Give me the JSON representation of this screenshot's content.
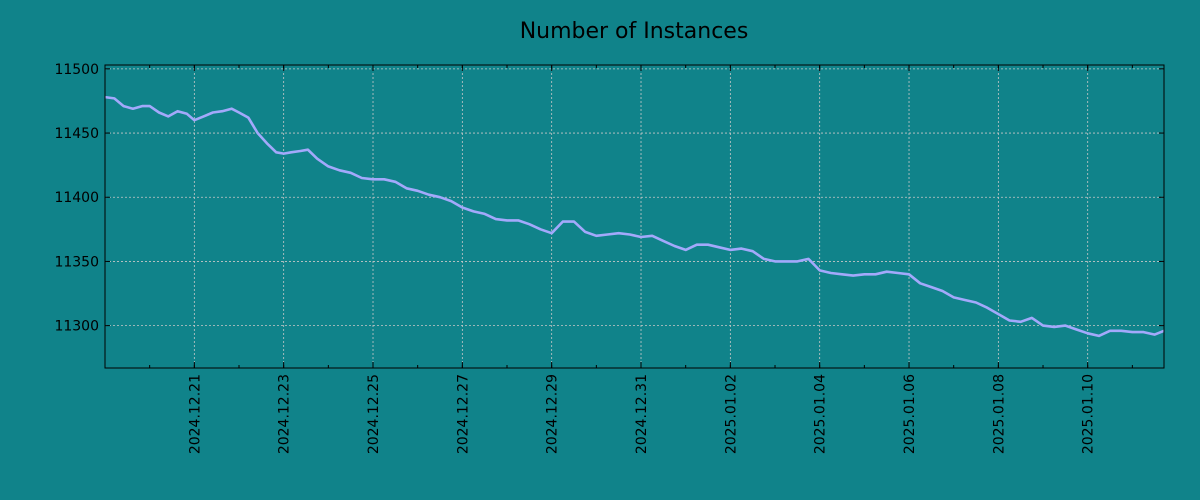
{
  "page": {
    "background": "#10838a"
  },
  "chart_data": {
    "type": "line",
    "title": "Number of Instances",
    "xlabel": "",
    "ylabel": "",
    "x_range": [
      "2024.12.19 00:00",
      "2025.01.11 17:00"
    ],
    "ylim": [
      11267,
      11503
    ],
    "y_ticks": [
      11300,
      11350,
      11400,
      11450,
      11500
    ],
    "x_ticks": [
      "2024.12.21",
      "2024.12.23",
      "2024.12.25",
      "2024.12.27",
      "2024.12.29",
      "2024.12.31",
      "2025.01.02",
      "2025.01.04",
      "2025.01.06",
      "2025.01.08",
      "2025.01.10"
    ],
    "grid": true,
    "line_color": "#a3a9fb",
    "grid_color": "#c8c8c8",
    "axes_background": "#10838a",
    "series": [
      {
        "x": [
          "2024.12.19 00:00",
          "2024.12.19 05:00",
          "2024.12.19 10:00",
          "2024.12.19 15:00",
          "2024.12.19 20:00",
          "2024.12.20 00:00",
          "2024.12.20 05:00",
          "2024.12.20 10:00",
          "2024.12.20 15:00",
          "2024.12.20 20:00",
          "2024.12.21 00:00",
          "2024.12.21 05:00",
          "2024.12.21 10:00",
          "2024.12.21 15:00",
          "2024.12.21 20:00",
          "2024.12.22 00:00",
          "2024.12.22 05:00",
          "2024.12.22 10:00",
          "2024.12.22 15:00",
          "2024.12.22 20:00",
          "2024.12.23 00:00",
          "2024.12.23 04:00",
          "2024.12.23 09:00",
          "2024.12.23 13:00",
          "2024.12.23 18:00",
          "2024.12.24 00:00",
          "2024.12.24 06:00",
          "2024.12.24 12:00",
          "2024.12.24 18:00",
          "2024.12.25 00:00",
          "2024.12.25 06:00",
          "2024.12.25 12:00",
          "2024.12.25 18:00",
          "2024.12.26 00:00",
          "2024.12.26 06:00",
          "2024.12.26 12:00",
          "2024.12.26 18:00",
          "2024.12.27 00:00",
          "2024.12.27 06:00",
          "2024.12.27 12:00",
          "2024.12.27 18:00",
          "2024.12.28 00:00",
          "2024.12.28 06:00",
          "2024.12.28 12:00",
          "2024.12.28 18:00",
          "2024.12.29 00:00",
          "2024.12.29 06:00",
          "2024.12.29 12:00",
          "2024.12.29 18:00",
          "2024.12.30 00:00",
          "2024.12.30 06:00",
          "2024.12.30 12:00",
          "2024.12.30 18:00",
          "2024.12.31 00:00",
          "2024.12.31 06:00",
          "2024.12.31 12:00",
          "2024.12.31 18:00",
          "2025.01.01 00:00",
          "2025.01.01 06:00",
          "2025.01.01 12:00",
          "2025.01.01 18:00",
          "2025.01.02 00:00",
          "2025.01.02 06:00",
          "2025.01.02 12:00",
          "2025.01.02 18:00",
          "2025.01.03 00:00",
          "2025.01.03 06:00",
          "2025.01.03 12:00",
          "2025.01.03 18:00",
          "2025.01.04 00:00",
          "2025.01.04 06:00",
          "2025.01.04 12:00",
          "2025.01.04 18:00",
          "2025.01.05 00:00",
          "2025.01.05 06:00",
          "2025.01.05 12:00",
          "2025.01.05 18:00",
          "2025.01.06 00:00",
          "2025.01.06 06:00",
          "2025.01.06 12:00",
          "2025.01.06 18:00",
          "2025.01.07 00:00",
          "2025.01.07 06:00",
          "2025.01.07 12:00",
          "2025.01.07 18:00",
          "2025.01.08 00:00",
          "2025.01.08 06:00",
          "2025.01.08 12:00",
          "2025.01.08 18:00",
          "2025.01.09 00:00",
          "2025.01.09 06:00",
          "2025.01.09 12:00",
          "2025.01.09 18:00",
          "2025.01.10 00:00",
          "2025.01.10 06:00",
          "2025.01.10 12:00",
          "2025.01.10 18:00",
          "2025.01.11 00:00",
          "2025.01.11 06:00",
          "2025.01.11 12:00",
          "2025.01.11 17:00"
        ],
        "y": [
          11478,
          11477,
          11471,
          11469,
          11471,
          11471,
          11466,
          11463,
          11467,
          11465,
          11460,
          11463,
          11466,
          11467,
          11469,
          11466,
          11462,
          11450,
          11442,
          11435,
          11434,
          11435,
          11436,
          11437,
          11430,
          11424,
          11421,
          11419,
          11415,
          11414,
          11414,
          11412,
          11407,
          11405,
          11402,
          11400,
          11397,
          11392,
          11389,
          11387,
          11383,
          11382,
          11382,
          11379,
          11375,
          11372,
          11381,
          11381,
          11373,
          11370,
          11371,
          11372,
          11371,
          11369,
          11370,
          11366,
          11362,
          11359,
          11363,
          11363,
          11361,
          11359,
          11360,
          11358,
          11352,
          11350,
          11350,
          11350,
          11352,
          11343,
          11341,
          11340,
          11339,
          11340,
          11340,
          11342,
          11341,
          11340,
          11333,
          11330,
          11327,
          11322,
          11320,
          11318,
          11314,
          11309,
          11304,
          11303,
          11306,
          11300,
          11299,
          11300,
          11297,
          11294,
          11292,
          11296,
          11296,
          11295,
          11295,
          11293,
          11296
        ]
      }
    ]
  }
}
